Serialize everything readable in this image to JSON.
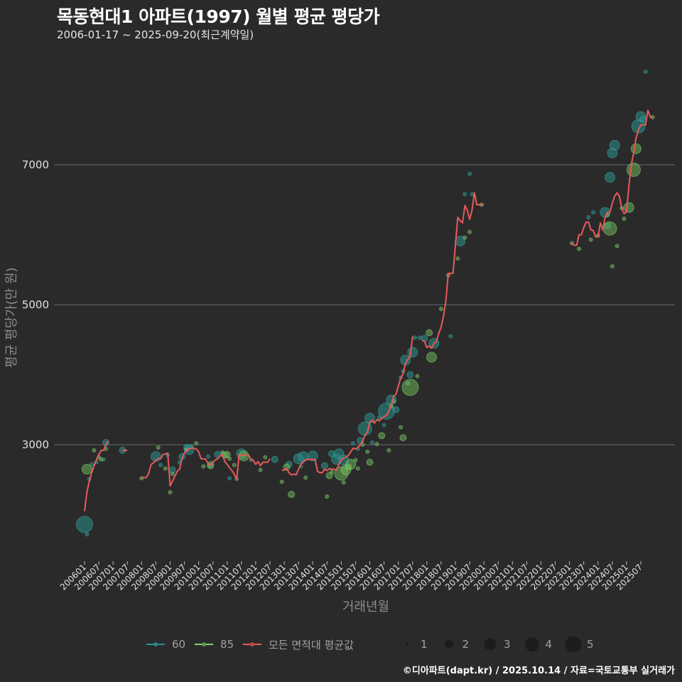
{
  "title": "목동현대1 아파트(1997) 월별 평균 평당가",
  "subtitle": "2006-01-17 ~ 2025-09-20(최근계약일)",
  "caption": "©디아파트(dapt.kr) / 2025.10.14 / 자료=국토교통부 실거래가",
  "colors": {
    "background": "#2b2a2b",
    "grid": "#6b6b6b",
    "series_60": "#2a8f8c",
    "series_85": "#7fd46a",
    "series_avg": "#e85a5a"
  },
  "legend": {
    "series": [
      {
        "label": "60",
        "color": "#2a8f8c"
      },
      {
        "label": "85",
        "color": "#7fd46a"
      },
      {
        "label": "모든 면적대 평균값",
        "color": "#e85a5a"
      }
    ],
    "sizes": [
      {
        "label": "1",
        "r": 2
      },
      {
        "label": "2",
        "r": 6
      },
      {
        "label": "3",
        "r": 8.5
      },
      {
        "label": "4",
        "r": 10
      },
      {
        "label": "5",
        "r": 11.5
      }
    ]
  },
  "chart_data": {
    "type": "scatter+line",
    "title": "목동현대1 아파트(1997) 월별 평균 평당가",
    "subtitle": "2006-01-17 ~ 2025-09-20(최근계약일)",
    "xlabel": "거래년월",
    "ylabel": "평균 평당가(만 원)",
    "yticks": [
      3000,
      5000,
      7000
    ],
    "ylim": [
      1600,
      8400
    ],
    "grid": "horizontal",
    "legend_position": "bottom",
    "xticks": [
      "200601",
      "200607",
      "200701",
      "200707",
      "200801",
      "200807",
      "200901",
      "200907",
      "201001",
      "201007",
      "201101",
      "201107",
      "201201",
      "201207",
      "201301",
      "201307",
      "201401",
      "201407",
      "201501",
      "201507",
      "201601",
      "201607",
      "201701",
      "201707",
      "201801",
      "201807",
      "201901",
      "201907",
      "202001",
      "202007",
      "202101",
      "202107",
      "202201",
      "202207",
      "202301",
      "202307",
      "202401",
      "202407",
      "202501",
      "202507"
    ],
    "avg_line": [
      [
        [
          0,
          2050
        ],
        [
          1,
          2320
        ],
        [
          2,
          2480
        ],
        [
          3,
          2600
        ],
        [
          4,
          2700
        ],
        [
          5,
          2780
        ],
        [
          6,
          2860
        ],
        [
          7,
          2920
        ],
        [
          8,
          2920
        ],
        [
          9,
          3000
        ],
        [
          10,
          3050
        ]
      ],
      [
        [
          16,
          2920
        ],
        [
          17,
          2920
        ],
        [
          18,
          2920
        ]
      ],
      [
        [
          24,
          2530
        ],
        [
          25,
          2530
        ],
        [
          26,
          2530
        ],
        [
          27,
          2590
        ],
        [
          28,
          2720
        ],
        [
          29,
          2740
        ],
        [
          30,
          2780
        ],
        [
          31,
          2800
        ],
        [
          32,
          2800
        ],
        [
          33,
          2860
        ],
        [
          34,
          2870
        ],
        [
          35,
          2880
        ],
        [
          36,
          2410
        ],
        [
          37,
          2480
        ],
        [
          38,
          2550
        ],
        [
          39,
          2620
        ],
        [
          40,
          2650
        ],
        [
          41,
          2800
        ],
        [
          42,
          2880
        ],
        [
          43,
          2920
        ],
        [
          44,
          2940
        ],
        [
          45,
          2950
        ],
        [
          46,
          2950
        ],
        [
          47,
          2940
        ],
        [
          48,
          2900
        ],
        [
          49,
          2800
        ],
        [
          50,
          2800
        ],
        [
          51,
          2790
        ],
        [
          52,
          2730
        ],
        [
          53,
          2700
        ],
        [
          54,
          2750
        ],
        [
          55,
          2780
        ],
        [
          56,
          2800
        ],
        [
          57,
          2840
        ],
        [
          58,
          2860
        ],
        [
          59,
          2760
        ],
        [
          60,
          2720
        ],
        [
          61,
          2670
        ],
        [
          62,
          2630
        ],
        [
          63,
          2580
        ],
        [
          64,
          2500
        ],
        [
          65,
          2850
        ],
        [
          66,
          2850
        ],
        [
          67,
          2850
        ],
        [
          68,
          2850
        ],
        [
          69,
          2850
        ],
        [
          70,
          2790
        ],
        [
          71,
          2780
        ],
        [
          72,
          2720
        ],
        [
          73,
          2760
        ],
        [
          74,
          2700
        ],
        [
          75,
          2750
        ],
        [
          76,
          2750
        ],
        [
          77,
          2750
        ],
        [
          78,
          2800
        ]
      ],
      [
        [
          83,
          2630
        ],
        [
          84,
          2640
        ],
        [
          85,
          2660
        ],
        [
          86,
          2600
        ],
        [
          87,
          2570
        ],
        [
          88,
          2580
        ],
        [
          89,
          2570
        ],
        [
          90,
          2650
        ],
        [
          91,
          2720
        ],
        [
          92,
          2750
        ],
        [
          93,
          2790
        ],
        [
          94,
          2790
        ],
        [
          95,
          2790
        ],
        [
          96,
          2790
        ],
        [
          97,
          2790
        ],
        [
          98,
          2620
        ],
        [
          99,
          2600
        ],
        [
          100,
          2600
        ],
        [
          101,
          2650
        ],
        [
          102,
          2630
        ],
        [
          103,
          2660
        ],
        [
          104,
          2650
        ],
        [
          105,
          2650
        ],
        [
          106,
          2640
        ],
        [
          107,
          2720
        ],
        [
          108,
          2780
        ],
        [
          109,
          2810
        ],
        [
          110,
          2820
        ],
        [
          111,
          2850
        ],
        [
          112,
          2900
        ],
        [
          113,
          2950
        ],
        [
          114,
          2940
        ],
        [
          115,
          2960
        ],
        [
          116,
          3000
        ],
        [
          117,
          3050
        ],
        [
          118,
          3140
        ],
        [
          119,
          3180
        ],
        [
          120,
          3320
        ],
        [
          121,
          3350
        ],
        [
          122,
          3310
        ],
        [
          123,
          3360
        ],
        [
          124,
          3340
        ],
        [
          125,
          3380
        ],
        [
          126,
          3400
        ],
        [
          127,
          3420
        ],
        [
          128,
          3480
        ],
        [
          129,
          3560
        ],
        [
          130,
          3690
        ],
        [
          131,
          3720
        ],
        [
          132,
          3840
        ],
        [
          133,
          3950
        ],
        [
          134,
          4010
        ],
        [
          135,
          4160
        ],
        [
          136,
          4220
        ],
        [
          137,
          4260
        ],
        [
          138,
          4550
        ]
      ],
      [
        [
          142,
          4490
        ],
        [
          143,
          4480
        ],
        [
          144,
          4390
        ],
        [
          145,
          4410
        ],
        [
          146,
          4380
        ],
        [
          147,
          4450
        ],
        [
          148,
          4470
        ],
        [
          149,
          4590
        ],
        [
          150,
          4680
        ],
        [
          151,
          4840
        ],
        [
          152,
          5050
        ],
        [
          153,
          5450
        ],
        [
          154,
          5450
        ],
        [
          155,
          5450
        ],
        [
          156,
          5850
        ],
        [
          157,
          6250
        ],
        [
          158,
          6200
        ],
        [
          159,
          6170
        ],
        [
          160,
          6420
        ],
        [
          161,
          6350
        ],
        [
          162,
          6220
        ],
        [
          163,
          6350
        ],
        [
          164,
          6600
        ],
        [
          165,
          6430
        ],
        [
          166,
          6430
        ],
        [
          167,
          6430
        ],
        [
          168,
          6430
        ]
      ],
      [
        [
          205,
          5880
        ],
        [
          206,
          5850
        ],
        [
          207,
          5850
        ],
        [
          208,
          6000
        ],
        [
          209,
          6000
        ],
        [
          210,
          6100
        ],
        [
          211,
          6180
        ],
        [
          212,
          6180
        ],
        [
          213,
          6070
        ],
        [
          214,
          6060
        ],
        [
          215,
          5970
        ],
        [
          216,
          5970
        ],
        [
          217,
          6170
        ],
        [
          218,
          6070
        ],
        [
          219,
          6250
        ],
        [
          220,
          6320
        ],
        [
          221,
          6320
        ],
        [
          222,
          6450
        ],
        [
          223,
          6550
        ],
        [
          224,
          6600
        ],
        [
          225,
          6550
        ],
        [
          226,
          6380
        ],
        [
          227,
          6300
        ],
        [
          228,
          6330
        ],
        [
          229,
          6700
        ],
        [
          230,
          7000
        ],
        [
          231,
          7170
        ],
        [
          232,
          7380
        ],
        [
          233,
          7500
        ],
        [
          234,
          7570
        ],
        [
          235,
          7570
        ],
        [
          236,
          7570
        ],
        [
          237,
          7780
        ],
        [
          238,
          7680
        ],
        [
          239,
          7680
        ]
      ]
    ],
    "points_60": [
      [
        0,
        1860,
        5
      ],
      [
        1,
        1720,
        1
      ],
      [
        2,
        2510,
        1
      ],
      [
        3,
        2720,
        1
      ],
      [
        5,
        2750,
        1
      ],
      [
        8,
        2790,
        1
      ],
      [
        9,
        3030,
        2
      ],
      [
        16,
        2920,
        2
      ],
      [
        30,
        2830,
        3
      ],
      [
        32,
        2710,
        1
      ],
      [
        35,
        2850,
        1
      ],
      [
        37,
        2640,
        2
      ],
      [
        40,
        2750,
        1
      ],
      [
        41,
        2830,
        2
      ],
      [
        43,
        2960,
        2
      ],
      [
        44,
        2930,
        3
      ],
      [
        45,
        2980,
        1
      ],
      [
        52,
        2830,
        1
      ],
      [
        53,
        2720,
        2
      ],
      [
        56,
        2860,
        2
      ],
      [
        61,
        2520,
        1
      ],
      [
        64,
        2510,
        1
      ],
      [
        66,
        2870,
        3
      ],
      [
        70,
        2780,
        1
      ],
      [
        80,
        2790,
        2
      ],
      [
        86,
        2720,
        2
      ],
      [
        90,
        2800,
        3
      ],
      [
        91,
        2690,
        1
      ],
      [
        92,
        2830,
        3
      ],
      [
        96,
        2840,
        3
      ],
      [
        101,
        2700,
        2
      ],
      [
        104,
        2870,
        2
      ],
      [
        106,
        2790,
        3
      ],
      [
        107,
        2870,
        3
      ],
      [
        109,
        2780,
        3
      ],
      [
        113,
        3020,
        1
      ],
      [
        115,
        2940,
        1
      ],
      [
        116,
        3060,
        2
      ],
      [
        118,
        3230,
        4
      ],
      [
        120,
        3380,
        3
      ],
      [
        121,
        3030,
        1
      ],
      [
        124,
        3390,
        1
      ],
      [
        126,
        3280,
        1
      ],
      [
        127,
        3480,
        5
      ],
      [
        129,
        3640,
        3
      ],
      [
        131,
        3500,
        2
      ],
      [
        133,
        3960,
        1
      ],
      [
        134,
        4050,
        1
      ],
      [
        135,
        4210,
        3
      ],
      [
        137,
        4000,
        2
      ],
      [
        138,
        4320,
        3
      ],
      [
        139,
        4530,
        1
      ],
      [
        141,
        4530,
        1
      ],
      [
        143,
        4520,
        2
      ],
      [
        147,
        4450,
        3
      ],
      [
        154,
        4550,
        1
      ],
      [
        158,
        5910,
        3
      ],
      [
        160,
        6580,
        1
      ],
      [
        163,
        6580,
        1
      ],
      [
        162,
        6870,
        1
      ],
      [
        212,
        6250,
        1
      ],
      [
        214,
        6320,
        1
      ],
      [
        219,
        6320,
        3
      ],
      [
        220,
        6130,
        2
      ],
      [
        221,
        6820,
        3
      ],
      [
        222,
        7170,
        3
      ],
      [
        223,
        7280,
        3
      ],
      [
        233,
        7550,
        4
      ],
      [
        234,
        7690,
        3
      ],
      [
        235,
        7650,
        2
      ],
      [
        236,
        8330,
        1
      ]
    ],
    "points_85": [
      [
        1,
        2650,
        3
      ],
      [
        4,
        2920,
        1
      ],
      [
        6,
        2820,
        1
      ],
      [
        7,
        2790,
        1
      ],
      [
        9,
        2940,
        1
      ],
      [
        24,
        2520,
        1
      ],
      [
        31,
        2960,
        1
      ],
      [
        34,
        2660,
        1
      ],
      [
        36,
        2320,
        1
      ],
      [
        37,
        2580,
        1
      ],
      [
        43,
        2930,
        1
      ],
      [
        47,
        3020,
        1
      ],
      [
        50,
        2690,
        1
      ],
      [
        53,
        2700,
        2
      ],
      [
        58,
        2890,
        1
      ],
      [
        59,
        2850,
        2
      ],
      [
        60,
        2860,
        2
      ],
      [
        61,
        2800,
        1
      ],
      [
        63,
        2710,
        1
      ],
      [
        67,
        2840,
        3
      ],
      [
        74,
        2640,
        1
      ],
      [
        76,
        2820,
        1
      ],
      [
        83,
        2470,
        1
      ],
      [
        85,
        2680,
        2
      ],
      [
        87,
        2290,
        2
      ],
      [
        93,
        2530,
        1
      ],
      [
        102,
        2260,
        1
      ],
      [
        103,
        2560,
        2
      ],
      [
        104,
        2610,
        1
      ],
      [
        108,
        2590,
        4
      ],
      [
        109,
        2460,
        1
      ],
      [
        110,
        2640,
        3
      ],
      [
        111,
        2680,
        2
      ],
      [
        112,
        2720,
        3
      ],
      [
        114,
        2780,
        1
      ],
      [
        115,
        2660,
        1
      ],
      [
        117,
        3000,
        1
      ],
      [
        119,
        2900,
        1
      ],
      [
        120,
        2750,
        2
      ],
      [
        123,
        3010,
        1
      ],
      [
        125,
        3130,
        2
      ],
      [
        128,
        2920,
        1
      ],
      [
        129,
        3550,
        1
      ],
      [
        130,
        3620,
        1
      ],
      [
        133,
        3250,
        1
      ],
      [
        134,
        3100,
        2
      ],
      [
        136,
        3880,
        1
      ],
      [
        137,
        3820,
        5
      ],
      [
        140,
        3980,
        1
      ],
      [
        145,
        4600,
        2
      ],
      [
        146,
        4250,
        3
      ],
      [
        150,
        4940,
        1
      ],
      [
        153,
        5420,
        1
      ],
      [
        157,
        5660,
        1
      ],
      [
        160,
        5960,
        1
      ],
      [
        162,
        6040,
        1
      ],
      [
        167,
        6430,
        1
      ],
      [
        205,
        5880,
        1
      ],
      [
        208,
        5800,
        1
      ],
      [
        213,
        5930,
        1
      ],
      [
        216,
        5990,
        1
      ],
      [
        220,
        6280,
        1
      ],
      [
        221,
        6090,
        4
      ],
      [
        222,
        5550,
        1
      ],
      [
        224,
        5840,
        1
      ],
      [
        226,
        6380,
        1
      ],
      [
        227,
        6230,
        1
      ],
      [
        229,
        6390,
        3
      ],
      [
        231,
        6930,
        4
      ],
      [
        232,
        7230,
        3
      ],
      [
        239,
        7680,
        1
      ]
    ]
  },
  "axis": {
    "xlabel": "거래년월",
    "ylabel": "평균 평당가(만 원)"
  }
}
